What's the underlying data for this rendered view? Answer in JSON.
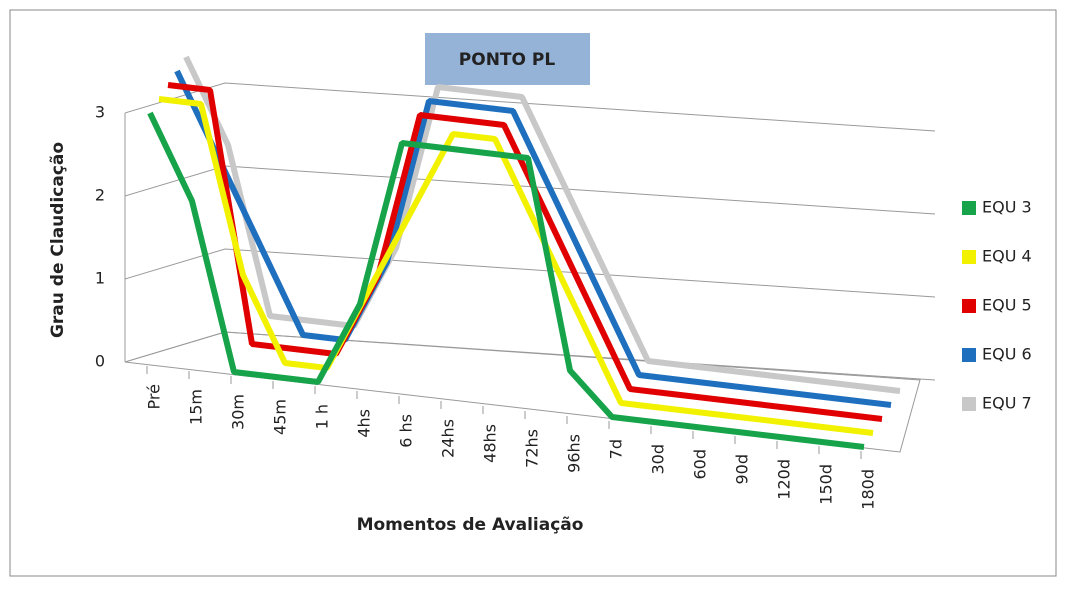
{
  "chart_data": {
    "type": "line3d",
    "title": "PONTO PL",
    "xlabel": "Momentos de Avaliação",
    "ylabel": "Grau de Claudicação",
    "categories": [
      "Pré",
      "15m",
      "30m",
      "45m",
      "1 h",
      "4hs",
      "6 hs",
      "24hs",
      "48hs",
      "72hs",
      "96hs",
      "7d",
      "30d",
      "60d",
      "90d",
      "120d",
      "150d",
      "180d"
    ],
    "ylim": [
      0,
      3
    ],
    "yticks": [
      0,
      1,
      2,
      3
    ],
    "grid": true,
    "legend": "right",
    "series": [
      {
        "name": "EQU 3",
        "color": "#16a34a",
        "values": [
          3,
          2,
          0,
          0,
          0,
          1,
          3,
          3,
          3,
          3,
          0.5,
          0,
          0,
          0,
          0,
          0,
          0,
          0
        ]
      },
      {
        "name": "EQU 4",
        "color": "#f2f200",
        "values": [
          3,
          3,
          1,
          0,
          0,
          1,
          2,
          3,
          3,
          2,
          1,
          0,
          0,
          0,
          0,
          0,
          0,
          0
        ]
      },
      {
        "name": "EQU 5",
        "color": "#e00000",
        "values": [
          3,
          3,
          0,
          0,
          0,
          1,
          3,
          3,
          3,
          2,
          1,
          0,
          0,
          0,
          0,
          0,
          0,
          0
        ]
      },
      {
        "name": "EQU 6",
        "color": "#1f6fbf",
        "values": [
          3,
          2,
          1,
          0,
          0,
          1,
          3,
          3,
          3,
          2,
          1,
          0,
          0,
          0,
          0,
          0,
          0,
          0
        ]
      },
      {
        "name": "EQU 7",
        "color": "#c8c8c8",
        "values": [
          3,
          2,
          0,
          0,
          0,
          1,
          3,
          3,
          3,
          2,
          1,
          0,
          0,
          0,
          0,
          0,
          0,
          0
        ]
      }
    ]
  }
}
